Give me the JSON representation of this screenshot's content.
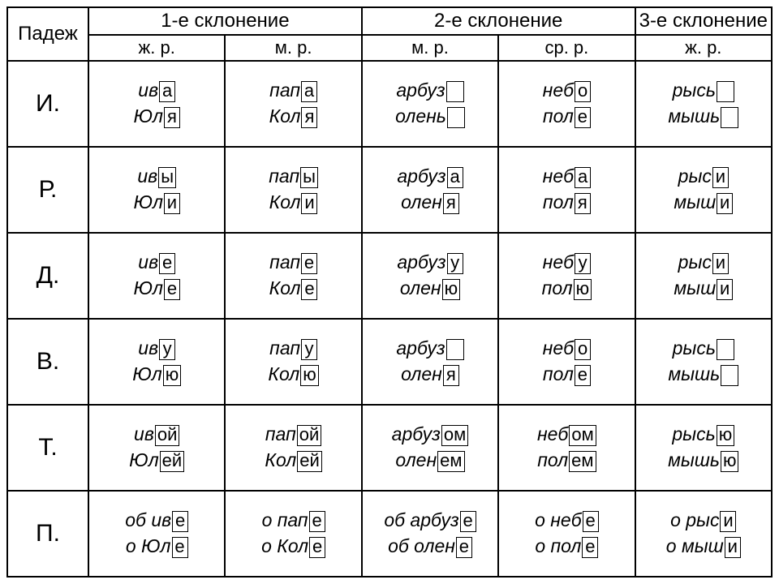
{
  "header": {
    "case_col": "Падеж",
    "decl1": "1-е склонение",
    "decl2": "2-е склонение",
    "decl3": "3-е склонение",
    "gender1a": "ж. р.",
    "gender1b": "м. р.",
    "gender2a": "м. р.",
    "gender2b": "ср. р.",
    "gender3a": "ж. р."
  },
  "cases": [
    "И.",
    "Р.",
    "Д.",
    "В.",
    "Т.",
    "П."
  ],
  "cells": {
    "i": {
      "c1": [
        [
          "ив",
          "а"
        ],
        [
          "Юл",
          "я"
        ]
      ],
      "c2": [
        [
          "пап",
          "а"
        ],
        [
          "Кол",
          "я"
        ]
      ],
      "c3": [
        [
          "арбуз",
          ""
        ],
        [
          "олень",
          ""
        ]
      ],
      "c4": [
        [
          "неб",
          "о"
        ],
        [
          "пол",
          "е"
        ]
      ],
      "c5": [
        [
          "рысь",
          ""
        ],
        [
          "мышь",
          ""
        ]
      ]
    },
    "r": {
      "c1": [
        [
          "ив",
          "ы"
        ],
        [
          "Юл",
          "и"
        ]
      ],
      "c2": [
        [
          "пап",
          "ы"
        ],
        [
          "Кол",
          "и"
        ]
      ],
      "c3": [
        [
          "арбуз",
          "а"
        ],
        [
          "олен",
          "я"
        ]
      ],
      "c4": [
        [
          "неб",
          "а"
        ],
        [
          "пол",
          "я"
        ]
      ],
      "c5": [
        [
          "рыс",
          "и"
        ],
        [
          "мыш",
          "и"
        ]
      ]
    },
    "d": {
      "c1": [
        [
          "ив",
          "е"
        ],
        [
          "Юл",
          "е"
        ]
      ],
      "c2": [
        [
          "пап",
          "е"
        ],
        [
          "Кол",
          "е"
        ]
      ],
      "c3": [
        [
          "арбуз",
          "у"
        ],
        [
          "олен",
          "ю"
        ]
      ],
      "c4": [
        [
          "неб",
          "у"
        ],
        [
          "пол",
          "ю"
        ]
      ],
      "c5": [
        [
          "рыс",
          "и"
        ],
        [
          "мыш",
          "и"
        ]
      ]
    },
    "v": {
      "c1": [
        [
          "ив",
          "у"
        ],
        [
          "Юл",
          "ю"
        ]
      ],
      "c2": [
        [
          "пап",
          "у"
        ],
        [
          "Кол",
          "ю"
        ]
      ],
      "c3": [
        [
          "арбуз",
          ""
        ],
        [
          "олен",
          "я"
        ]
      ],
      "c4": [
        [
          "неб",
          "о"
        ],
        [
          "пол",
          "е"
        ]
      ],
      "c5": [
        [
          "рысь",
          ""
        ],
        [
          "мышь",
          ""
        ]
      ]
    },
    "t": {
      "c1": [
        [
          "ив",
          "ой"
        ],
        [
          "Юл",
          "ей"
        ]
      ],
      "c2": [
        [
          "пап",
          "ой"
        ],
        [
          "Кол",
          "ей"
        ]
      ],
      "c3": [
        [
          "арбуз",
          "ом"
        ],
        [
          "олен",
          "ем"
        ]
      ],
      "c4": [
        [
          "неб",
          "ом"
        ],
        [
          "пол",
          "ем"
        ]
      ],
      "c5": [
        [
          "рысь",
          "ю"
        ],
        [
          "мышь",
          "ю"
        ]
      ]
    },
    "p": {
      "c1": [
        [
          "об ив",
          "е"
        ],
        [
          "о Юл",
          "е"
        ]
      ],
      "c2": [
        [
          "о пап",
          "е"
        ],
        [
          "о Кол",
          "е"
        ]
      ],
      "c3": [
        [
          "об арбуз",
          "е"
        ],
        [
          "об олен",
          "е"
        ]
      ],
      "c4": [
        [
          "о неб",
          "е"
        ],
        [
          "о пол",
          "е"
        ]
      ],
      "c5": [
        [
          "о рыс",
          "и"
        ],
        [
          "о мыш",
          "и"
        ]
      ]
    }
  }
}
